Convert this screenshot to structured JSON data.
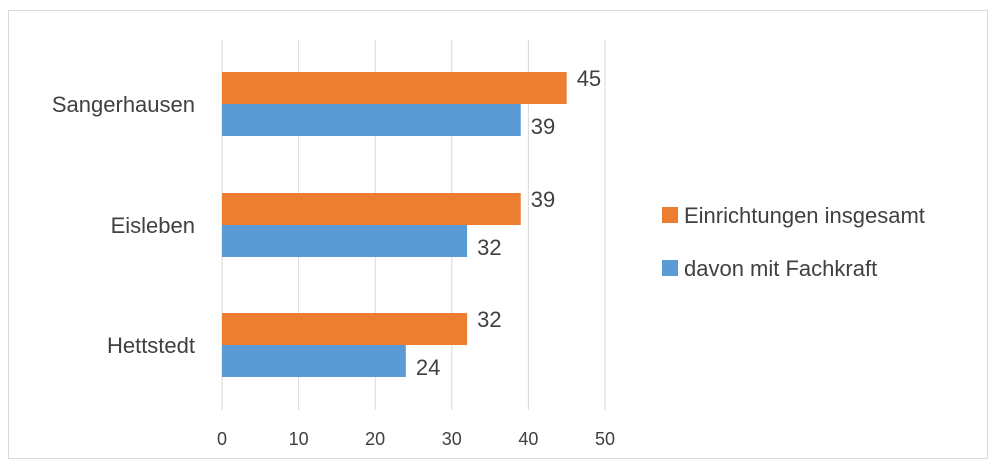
{
  "chart_data": {
    "type": "bar",
    "orientation": "horizontal",
    "categories": [
      "Hettstedt",
      "Eisleben",
      "Sangerhausen"
    ],
    "series": [
      {
        "name": "Einrichtungen insgesamt",
        "values": [
          32,
          39,
          45
        ],
        "color": "#ed7d31"
      },
      {
        "name": "davon mit Fachkraft",
        "values": [
          24,
          32,
          39
        ],
        "color": "#5b9bd5"
      }
    ],
    "xlim": [
      0,
      50
    ],
    "xticks": [
      "0",
      "10",
      "20",
      "30",
      "40",
      "50"
    ],
    "grid": "vertical",
    "legend_position": "right",
    "data_labels": true
  }
}
